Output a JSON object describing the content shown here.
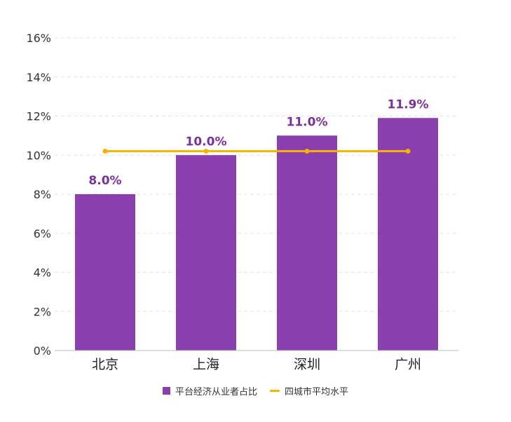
{
  "chart_data": {
    "type": "bar",
    "categories": [
      "北京",
      "上海",
      "深圳",
      "广州"
    ],
    "series": [
      {
        "name": "平台经济从业者占比",
        "type": "bar",
        "values": [
          8.0,
          10.0,
          11.0,
          11.9
        ],
        "labels": [
          "8.0%",
          "10.0%",
          "11.0%",
          "11.9%"
        ]
      },
      {
        "name": "四城市平均水平",
        "type": "line",
        "values": [
          10.2,
          10.2,
          10.2,
          10.2
        ]
      }
    ],
    "ylim": [
      0,
      16
    ],
    "yticks": [
      0,
      2,
      4,
      6,
      8,
      10,
      12,
      14,
      16
    ],
    "ytick_labels": [
      "0%",
      "2%",
      "4%",
      "6%",
      "8%",
      "10%",
      "12%",
      "14%",
      "16%"
    ],
    "grid": true,
    "legend_position": "bottom",
    "colors": {
      "bar": "#8b3fae",
      "line": "#f5b400",
      "label": "#7b2f9e"
    }
  }
}
